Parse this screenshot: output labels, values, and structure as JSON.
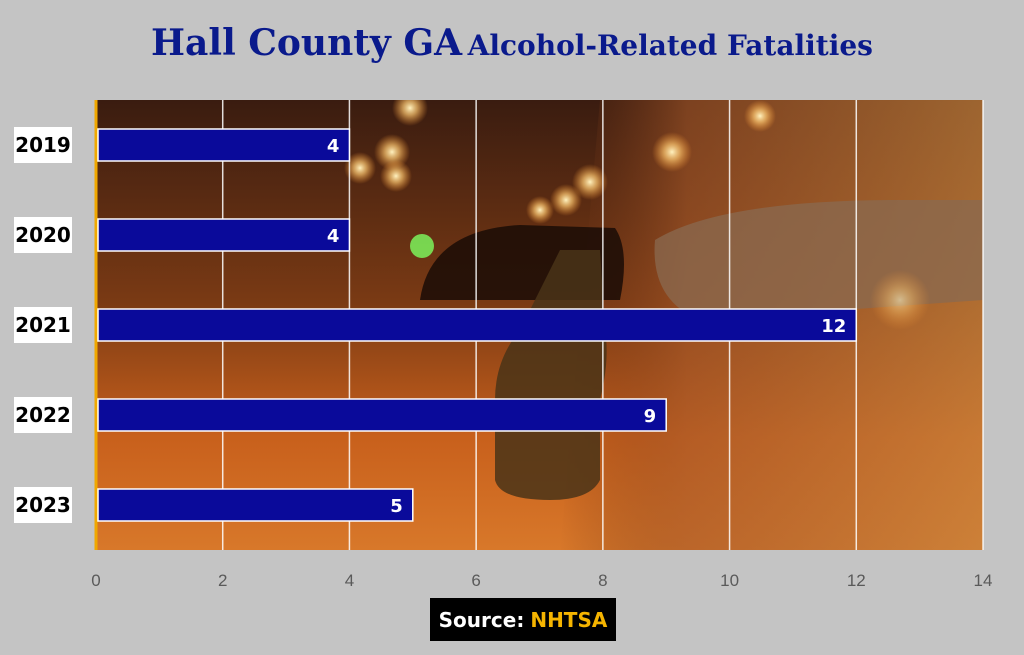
{
  "title": {
    "part1": "Hall County GA",
    "part2": "Alcohol-Related Fatalities"
  },
  "source": {
    "label": "Source:",
    "value": "NHTSA"
  },
  "colors": {
    "bar": "#0a0a9a",
    "title": "#0a1a8c",
    "source_accent": "#f5b400",
    "axis_line": "#f0a800",
    "background": "#c4c4c4"
  },
  "chart_data": {
    "type": "bar",
    "orientation": "horizontal",
    "categories": [
      "2019",
      "2020",
      "2021",
      "2022",
      "2023"
    ],
    "values": [
      4,
      4,
      12,
      9,
      5
    ],
    "xlim": [
      0,
      14
    ],
    "xticks": [
      0,
      2,
      4,
      6,
      8,
      10,
      12,
      14
    ],
    "grid": true,
    "data_labels": true,
    "background_image": "night-street-driver-holding-bottle-photo"
  }
}
